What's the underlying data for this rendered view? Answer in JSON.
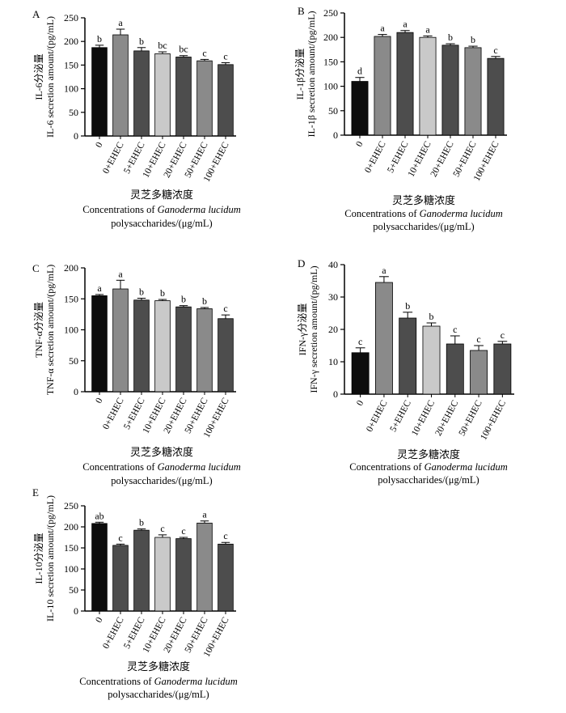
{
  "colors": {
    "dark": "#0d0d0d",
    "medium_gray": "#8a8a8a",
    "dark_gray": "#4d4d4d",
    "light_gray": "#c9c9c9",
    "axis": "#000000"
  },
  "chart_data": [
    {
      "type": "bar",
      "panel_label": "A",
      "ylabel_cn": "IL-6分泌量",
      "ylabel_en": "IL-6 secretion amount/(pg/mL)",
      "xlabel_cn": "灵芝多糖浓度",
      "xlabel_en_prefix": "Concentrations of ",
      "xlabel_en_italic": "Ganoderma lucidum",
      "xlabel_en_line2": "polysaccharides/(μg/mL)",
      "ylim": [
        0,
        250
      ],
      "yticks": [
        0,
        50,
        100,
        150,
        200,
        250
      ],
      "categories": [
        "0",
        "0+EHEC",
        "5+EHEC",
        "10+EHEC",
        "20+EHEC",
        "50+EHEC",
        "100+EHEC"
      ],
      "values": [
        187,
        214,
        180,
        174,
        167,
        159,
        151
      ],
      "errors": [
        5,
        12,
        7,
        4,
        3,
        3,
        4
      ],
      "letters": [
        "b",
        "a",
        "b",
        "bc",
        "bc",
        "c",
        "c"
      ],
      "bar_colors": [
        "dark",
        "medium_gray",
        "dark_gray",
        "light_gray",
        "dark_gray",
        "medium_gray",
        "dark_gray"
      ]
    },
    {
      "type": "bar",
      "panel_label": "B",
      "ylabel_cn": "IL-1β分泌量",
      "ylabel_en": "IL-1β secretion amount/(pg/mL)",
      "xlabel_cn": "灵芝多糖浓度",
      "xlabel_en_prefix": "Concentrations of ",
      "xlabel_en_italic": "Ganoderma lucidum",
      "xlabel_en_line2": "polysaccharides/(μg/mL)",
      "ylim": [
        0,
        250
      ],
      "yticks": [
        0,
        50,
        100,
        150,
        200,
        250
      ],
      "categories": [
        "0",
        "0+EHEC",
        "5+EHEC",
        "10+EHEC",
        "20+EHEC",
        "50+EHEC",
        "100+EHEC"
      ],
      "values": [
        110,
        202,
        210,
        200,
        184,
        179,
        157
      ],
      "errors": [
        8,
        4,
        4,
        3,
        3,
        3,
        4
      ],
      "letters": [
        "d",
        "a",
        "a",
        "a",
        "b",
        "b",
        "c"
      ],
      "bar_colors": [
        "dark",
        "medium_gray",
        "dark_gray",
        "light_gray",
        "dark_gray",
        "medium_gray",
        "dark_gray"
      ]
    },
    {
      "type": "bar",
      "panel_label": "C",
      "ylabel_cn": "TNF-α分泌量",
      "ylabel_en": "TNF-α secretion amount/(pg/mL)",
      "xlabel_cn": "灵芝多糖浓度",
      "xlabel_en_prefix": "Concentrations of ",
      "xlabel_en_italic": "Ganoderma lucidum",
      "xlabel_en_line2": "polysaccharides/(μg/mL)",
      "ylim": [
        0,
        200
      ],
      "yticks": [
        0,
        50,
        100,
        150,
        200
      ],
      "categories": [
        "0",
        "0+EHEC",
        "5+EHEC",
        "10+EHEC",
        "20+EHEC",
        "50+EHEC",
        "100+EHEC"
      ],
      "values": [
        155,
        166,
        148,
        147,
        137,
        134,
        118
      ],
      "errors": [
        2,
        14,
        3,
        2,
        2,
        2,
        6
      ],
      "letters": [
        "a",
        "a",
        "b",
        "b",
        "b",
        "b",
        "c"
      ],
      "bar_colors": [
        "dark",
        "medium_gray",
        "dark_gray",
        "light_gray",
        "dark_gray",
        "medium_gray",
        "dark_gray"
      ]
    },
    {
      "type": "bar",
      "panel_label": "D",
      "ylabel_cn": "IFN-γ分泌量",
      "ylabel_en": "IFN-γ secretion amount/(pg/mL)",
      "xlabel_cn": "灵芝多糖浓度",
      "xlabel_en_prefix": "Concentrations of ",
      "xlabel_en_italic": "Ganoderma lucidum",
      "xlabel_en_line2": "polysaccharides/(μg/mL)",
      "ylim": [
        0,
        40
      ],
      "yticks": [
        0,
        10,
        20,
        30,
        40
      ],
      "categories": [
        "0",
        "0+EHEC",
        "5+EHEC",
        "10+EHEC",
        "20+EHEC",
        "50+EHEC",
        "100+EHEC"
      ],
      "values": [
        12.8,
        34.5,
        23.5,
        21.0,
        15.5,
        13.5,
        15.5
      ],
      "errors": [
        1.5,
        1.8,
        1.8,
        1.0,
        2.5,
        1.5,
        0.8
      ],
      "letters": [
        "c",
        "a",
        "b",
        "b",
        "c",
        "c",
        "c"
      ],
      "bar_colors": [
        "dark",
        "medium_gray",
        "dark_gray",
        "light_gray",
        "dark_gray",
        "medium_gray",
        "dark_gray"
      ]
    },
    {
      "type": "bar",
      "panel_label": "E",
      "ylabel_cn": "IL-10分泌量",
      "ylabel_en": "IL-10 secretion amount/(pg/mL)",
      "xlabel_cn": "灵芝多糖浓度",
      "xlabel_en_prefix": "Concentrations of ",
      "xlabel_en_italic": "Ganoderma lucidum",
      "xlabel_en_line2": "polysaccharides/(μg/mL)",
      "ylim": [
        0,
        250
      ],
      "yticks": [
        0,
        50,
        100,
        150,
        200,
        250
      ],
      "categories": [
        "0",
        "0+EHEC",
        "5+EHEC",
        "10+EHEC",
        "20+EHEC",
        "50+EHEC",
        "100+EHEC"
      ],
      "values": [
        208,
        156,
        192,
        175,
        172,
        209,
        159
      ],
      "errors": [
        3,
        3,
        3,
        6,
        3,
        5,
        4
      ],
      "letters": [
        "ab",
        "c",
        "b",
        "c",
        "c",
        "a",
        "c"
      ],
      "bar_colors": [
        "dark",
        "dark_gray",
        "dark_gray",
        "light_gray",
        "dark_gray",
        "medium_gray",
        "dark_gray"
      ]
    }
  ]
}
